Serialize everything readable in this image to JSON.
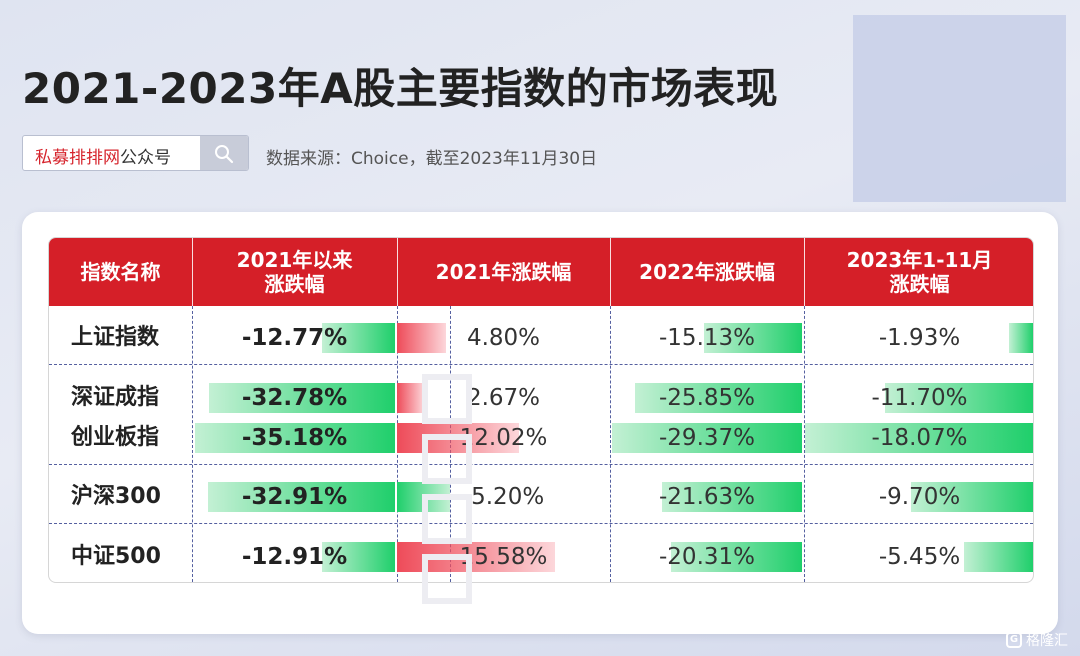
{
  "title": "2021-2023年A股主要指数的市场表现",
  "search": {
    "brand": "私募排排网",
    "rest": "公众号",
    "icon": "search-icon"
  },
  "source": "数据来源：Choice，截至2023年11月30日",
  "watermark_logo": "格隆汇",
  "colors": {
    "header": "#d51f28",
    "positive_bar": "#ee4b59",
    "negative_bar": "#1fcf6b"
  },
  "chart_data": {
    "type": "table",
    "headers": [
      "指数名称",
      "2021年以来涨跌幅",
      "2021年涨跌幅",
      "2022年涨跌幅",
      "2023年1-11月涨跌幅"
    ],
    "header_lines": [
      [
        "指数名称"
      ],
      [
        "2021年以来",
        "涨跌幅"
      ],
      [
        "2021年涨跌幅"
      ],
      [
        "2022年涨跌幅"
      ],
      [
        "2023年1-11月",
        "涨跌幅"
      ]
    ],
    "unit": "%",
    "rows": [
      {
        "name": "上证指数",
        "values": [
          -12.77,
          4.8,
          -15.13,
          -1.93
        ],
        "labels": [
          "-12.77%",
          "4.80%",
          "-15.13%",
          "-1.93%"
        ]
      },
      {
        "name": "深证成指",
        "values": [
          -32.78,
          2.67,
          -25.85,
          -11.7
        ],
        "labels": [
          "-32.78%",
          "2.67%",
          "-25.85%",
          "-11.70%"
        ]
      },
      {
        "name": "创业板指",
        "values": [
          -35.18,
          12.02,
          -29.37,
          -18.07
        ],
        "labels": [
          "-35.18%",
          "12.02%",
          "-29.37%",
          "-18.07%"
        ]
      },
      {
        "name": "沪深300",
        "values": [
          -32.91,
          -5.2,
          -21.63,
          -9.7
        ],
        "labels": [
          "-32.91%",
          "-5.20%",
          "-21.63%",
          "-9.70%"
        ]
      },
      {
        "name": "中证500",
        "values": [
          -12.91,
          15.58,
          -20.31,
          -5.45
        ],
        "labels": [
          "-12.91%",
          "15.58%",
          "-20.31%",
          "-5.45%"
        ]
      }
    ]
  }
}
